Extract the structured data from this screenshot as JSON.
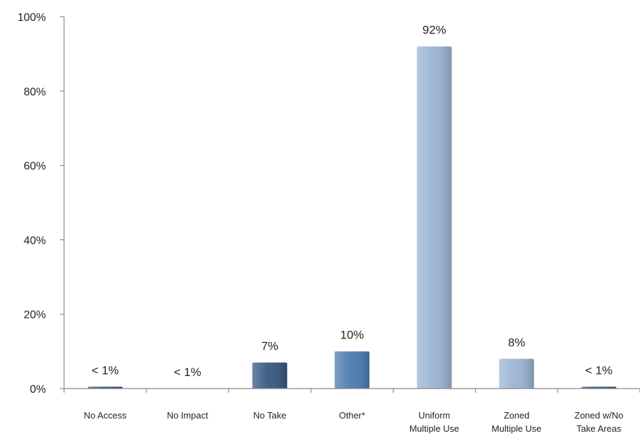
{
  "chart_data": {
    "type": "bar",
    "title": "",
    "xlabel": "",
    "ylabel": "",
    "ylim": [
      0,
      100
    ],
    "yticks": [
      "0%",
      "20%",
      "40%",
      "60%",
      "80%",
      "100%"
    ],
    "grid": false,
    "legend": "none",
    "categories": [
      [
        "No Access"
      ],
      [
        "No Impact"
      ],
      [
        "No Take"
      ],
      [
        "Other*"
      ],
      [
        "Uniform",
        "Multiple Use"
      ],
      [
        "Zoned",
        "Multiple Use"
      ],
      [
        "Zoned w/No",
        "Take Areas"
      ]
    ],
    "values": [
      0.5,
      0,
      7,
      10,
      92,
      8,
      0.5
    ],
    "data_labels": [
      "< 1%",
      "< 1%",
      "7%",
      "10%",
      "92%",
      "8%",
      "< 1%"
    ],
    "bar_colors": [
      "#2e4f79",
      "#2e4f79",
      "#35577f",
      "#4a7bb0",
      "#9ab4d2",
      "#9ab4d2",
      "#2e4f79"
    ],
    "axis_color": "#888888"
  }
}
